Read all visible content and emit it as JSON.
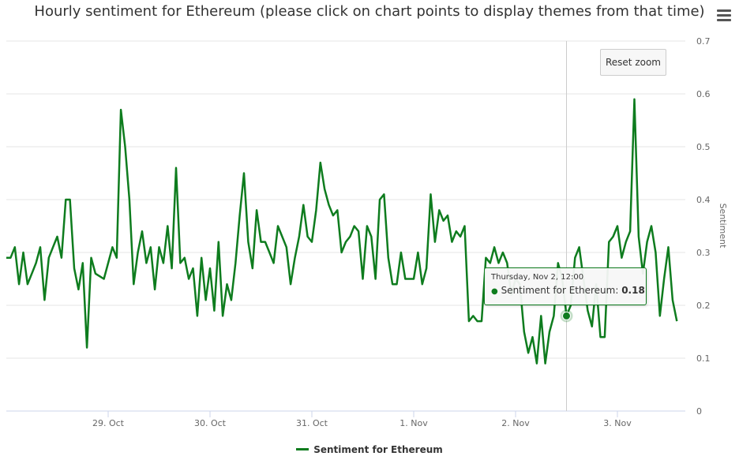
{
  "title": "Hourly sentiment for Ethereum (please click on chart points to display themes from that time)",
  "reset_zoom_label": "Reset zoom",
  "menu_icon": "hamburger-menu-icon",
  "tooltip": {
    "date": "Thursday, Nov 2, 12:00",
    "series": "Sentiment for Ethereum",
    "value": "0.18"
  },
  "colors": {
    "series": "#0e7c1e",
    "grid": "#e6e6e6",
    "axis_text": "#666666"
  },
  "chart_data": {
    "type": "line",
    "title": "Hourly sentiment for Ethereum (please click on chart points to display themes from that time)",
    "ylabel": "Sentiment",
    "xlabel": "",
    "ylim": [
      0,
      0.7
    ],
    "yticks": [
      "0",
      "0.1",
      "0.2",
      "0.3",
      "0.4",
      "0.5",
      "0.6",
      "0.7"
    ],
    "x_date_range": [
      "2017-10-28 00:00",
      "2017-11-03 16:00"
    ],
    "xtick_labels": [
      {
        "x": "2017-10-29 00:00",
        "label": "29. Oct"
      },
      {
        "x": "2017-10-30 00:00",
        "label": "30. Oct"
      },
      {
        "x": "2017-10-31 00:00",
        "label": "31. Oct"
      },
      {
        "x": "2017-11-01 00:00",
        "label": "1. Nov"
      },
      {
        "x": "2017-11-02 00:00",
        "label": "2. Nov"
      },
      {
        "x": "2017-11-03 00:00",
        "label": "3. Nov"
      }
    ],
    "grid": true,
    "legend": "bottom-center",
    "highlighted_point": {
      "x": "2017-11-02 12:00",
      "y": 0.18
    },
    "series": [
      {
        "name": "Sentiment for Ethereum",
        "color": "#0e7c1e",
        "points": [
          {
            "x": "2017-10-28 00:00",
            "y": 0.29
          },
          {
            "x": "2017-10-28 01:00",
            "y": 0.29
          },
          {
            "x": "2017-10-28 02:00",
            "y": 0.31
          },
          {
            "x": "2017-10-28 03:00",
            "y": 0.24
          },
          {
            "x": "2017-10-28 04:00",
            "y": 0.3
          },
          {
            "x": "2017-10-28 05:00",
            "y": 0.24
          },
          {
            "x": "2017-10-28 06:00",
            "y": 0.26
          },
          {
            "x": "2017-10-28 07:00",
            "y": 0.28
          },
          {
            "x": "2017-10-28 08:00",
            "y": 0.31
          },
          {
            "x": "2017-10-28 09:00",
            "y": 0.21
          },
          {
            "x": "2017-10-28 10:00",
            "y": 0.29
          },
          {
            "x": "2017-10-28 11:00",
            "y": 0.31
          },
          {
            "x": "2017-10-28 12:00",
            "y": 0.33
          },
          {
            "x": "2017-10-28 13:00",
            "y": 0.29
          },
          {
            "x": "2017-10-28 14:00",
            "y": 0.4
          },
          {
            "x": "2017-10-28 15:00",
            "y": 0.4
          },
          {
            "x": "2017-10-28 16:00",
            "y": 0.27
          },
          {
            "x": "2017-10-28 17:00",
            "y": 0.23
          },
          {
            "x": "2017-10-28 18:00",
            "y": 0.28
          },
          {
            "x": "2017-10-28 19:00",
            "y": 0.12
          },
          {
            "x": "2017-10-28 20:00",
            "y": 0.29
          },
          {
            "x": "2017-10-28 21:00",
            "y": 0.26
          },
          {
            "x": "2017-10-28 23:00",
            "y": 0.25
          },
          {
            "x": "2017-10-29 01:00",
            "y": 0.31
          },
          {
            "x": "2017-10-29 02:00",
            "y": 0.29
          },
          {
            "x": "2017-10-29 03:00",
            "y": 0.57
          },
          {
            "x": "2017-10-29 04:00",
            "y": 0.5
          },
          {
            "x": "2017-10-29 05:00",
            "y": 0.4
          },
          {
            "x": "2017-10-29 06:00",
            "y": 0.24
          },
          {
            "x": "2017-10-29 07:00",
            "y": 0.3
          },
          {
            "x": "2017-10-29 08:00",
            "y": 0.34
          },
          {
            "x": "2017-10-29 09:00",
            "y": 0.28
          },
          {
            "x": "2017-10-29 10:00",
            "y": 0.31
          },
          {
            "x": "2017-10-29 11:00",
            "y": 0.23
          },
          {
            "x": "2017-10-29 12:00",
            "y": 0.31
          },
          {
            "x": "2017-10-29 13:00",
            "y": 0.28
          },
          {
            "x": "2017-10-29 14:00",
            "y": 0.35
          },
          {
            "x": "2017-10-29 15:00",
            "y": 0.27
          },
          {
            "x": "2017-10-29 16:00",
            "y": 0.46
          },
          {
            "x": "2017-10-29 17:00",
            "y": 0.28
          },
          {
            "x": "2017-10-29 18:00",
            "y": 0.29
          },
          {
            "x": "2017-10-29 19:00",
            "y": 0.25
          },
          {
            "x": "2017-10-29 20:00",
            "y": 0.27
          },
          {
            "x": "2017-10-29 21:00",
            "y": 0.18
          },
          {
            "x": "2017-10-29 22:00",
            "y": 0.29
          },
          {
            "x": "2017-10-29 23:00",
            "y": 0.21
          },
          {
            "x": "2017-10-30 00:00",
            "y": 0.27
          },
          {
            "x": "2017-10-30 01:00",
            "y": 0.19
          },
          {
            "x": "2017-10-30 02:00",
            "y": 0.32
          },
          {
            "x": "2017-10-30 03:00",
            "y": 0.18
          },
          {
            "x": "2017-10-30 04:00",
            "y": 0.24
          },
          {
            "x": "2017-10-30 05:00",
            "y": 0.21
          },
          {
            "x": "2017-10-30 06:00",
            "y": 0.28
          },
          {
            "x": "2017-10-30 07:00",
            "y": 0.37
          },
          {
            "x": "2017-10-30 08:00",
            "y": 0.45
          },
          {
            "x": "2017-10-30 09:00",
            "y": 0.32
          },
          {
            "x": "2017-10-30 10:00",
            "y": 0.27
          },
          {
            "x": "2017-10-30 11:00",
            "y": 0.38
          },
          {
            "x": "2017-10-30 12:00",
            "y": 0.32
          },
          {
            "x": "2017-10-30 13:00",
            "y": 0.32
          },
          {
            "x": "2017-10-30 14:00",
            "y": 0.3
          },
          {
            "x": "2017-10-30 15:00",
            "y": 0.28
          },
          {
            "x": "2017-10-30 16:00",
            "y": 0.35
          },
          {
            "x": "2017-10-30 17:00",
            "y": 0.33
          },
          {
            "x": "2017-10-30 18:00",
            "y": 0.31
          },
          {
            "x": "2017-10-30 19:00",
            "y": 0.24
          },
          {
            "x": "2017-10-30 20:00",
            "y": 0.29
          },
          {
            "x": "2017-10-30 21:00",
            "y": 0.33
          },
          {
            "x": "2017-10-30 22:00",
            "y": 0.39
          },
          {
            "x": "2017-10-30 23:00",
            "y": 0.33
          },
          {
            "x": "2017-10-31 00:00",
            "y": 0.32
          },
          {
            "x": "2017-10-31 01:00",
            "y": 0.38
          },
          {
            "x": "2017-10-31 02:00",
            "y": 0.47
          },
          {
            "x": "2017-10-31 03:00",
            "y": 0.42
          },
          {
            "x": "2017-10-31 04:00",
            "y": 0.39
          },
          {
            "x": "2017-10-31 05:00",
            "y": 0.37
          },
          {
            "x": "2017-10-31 06:00",
            "y": 0.38
          },
          {
            "x": "2017-10-31 07:00",
            "y": 0.3
          },
          {
            "x": "2017-10-31 08:00",
            "y": 0.32
          },
          {
            "x": "2017-10-31 09:00",
            "y": 0.33
          },
          {
            "x": "2017-10-31 10:00",
            "y": 0.35
          },
          {
            "x": "2017-10-31 11:00",
            "y": 0.34
          },
          {
            "x": "2017-10-31 12:00",
            "y": 0.25
          },
          {
            "x": "2017-10-31 13:00",
            "y": 0.35
          },
          {
            "x": "2017-10-31 14:00",
            "y": 0.33
          },
          {
            "x": "2017-10-31 15:00",
            "y": 0.25
          },
          {
            "x": "2017-10-31 16:00",
            "y": 0.4
          },
          {
            "x": "2017-10-31 17:00",
            "y": 0.41
          },
          {
            "x": "2017-10-31 18:00",
            "y": 0.29
          },
          {
            "x": "2017-10-31 19:00",
            "y": 0.24
          },
          {
            "x": "2017-10-31 20:00",
            "y": 0.24
          },
          {
            "x": "2017-10-31 21:00",
            "y": 0.3
          },
          {
            "x": "2017-10-31 22:00",
            "y": 0.25
          },
          {
            "x": "2017-10-31 23:00",
            "y": 0.25
          },
          {
            "x": "2017-11-01 00:00",
            "y": 0.25
          },
          {
            "x": "2017-11-01 01:00",
            "y": 0.3
          },
          {
            "x": "2017-11-01 02:00",
            "y": 0.24
          },
          {
            "x": "2017-11-01 03:00",
            "y": 0.27
          },
          {
            "x": "2017-11-01 04:00",
            "y": 0.41
          },
          {
            "x": "2017-11-01 05:00",
            "y": 0.32
          },
          {
            "x": "2017-11-01 06:00",
            "y": 0.38
          },
          {
            "x": "2017-11-01 07:00",
            "y": 0.36
          },
          {
            "x": "2017-11-01 08:00",
            "y": 0.37
          },
          {
            "x": "2017-11-01 09:00",
            "y": 0.32
          },
          {
            "x": "2017-11-01 10:00",
            "y": 0.34
          },
          {
            "x": "2017-11-01 11:00",
            "y": 0.33
          },
          {
            "x": "2017-11-01 12:00",
            "y": 0.35
          },
          {
            "x": "2017-11-01 13:00",
            "y": 0.17
          },
          {
            "x": "2017-11-01 14:00",
            "y": 0.18
          },
          {
            "x": "2017-11-01 15:00",
            "y": 0.17
          },
          {
            "x": "2017-11-01 16:00",
            "y": 0.17
          },
          {
            "x": "2017-11-01 17:00",
            "y": 0.29
          },
          {
            "x": "2017-11-01 18:00",
            "y": 0.28
          },
          {
            "x": "2017-11-01 19:00",
            "y": 0.31
          },
          {
            "x": "2017-11-01 20:00",
            "y": 0.28
          },
          {
            "x": "2017-11-01 21:00",
            "y": 0.3
          },
          {
            "x": "2017-11-01 22:00",
            "y": 0.28
          },
          {
            "x": "2017-11-01 23:00",
            "y": 0.22
          },
          {
            "x": "2017-11-02 00:00",
            "y": 0.25
          },
          {
            "x": "2017-11-02 01:00",
            "y": 0.24
          },
          {
            "x": "2017-11-02 02:00",
            "y": 0.15
          },
          {
            "x": "2017-11-02 03:00",
            "y": 0.11
          },
          {
            "x": "2017-11-02 04:00",
            "y": 0.14
          },
          {
            "x": "2017-11-02 05:00",
            "y": 0.09
          },
          {
            "x": "2017-11-02 06:00",
            "y": 0.18
          },
          {
            "x": "2017-11-02 07:00",
            "y": 0.09
          },
          {
            "x": "2017-11-02 08:00",
            "y": 0.15
          },
          {
            "x": "2017-11-02 09:00",
            "y": 0.18
          },
          {
            "x": "2017-11-02 10:00",
            "y": 0.28
          },
          {
            "x": "2017-11-02 11:00",
            "y": 0.25
          },
          {
            "x": "2017-11-02 12:00",
            "y": 0.18
          },
          {
            "x": "2017-11-02 13:00",
            "y": 0.2
          },
          {
            "x": "2017-11-02 14:00",
            "y": 0.29
          },
          {
            "x": "2017-11-02 15:00",
            "y": 0.31
          },
          {
            "x": "2017-11-02 16:00",
            "y": 0.25
          },
          {
            "x": "2017-11-02 17:00",
            "y": 0.19
          },
          {
            "x": "2017-11-02 18:00",
            "y": 0.16
          },
          {
            "x": "2017-11-02 19:00",
            "y": 0.24
          },
          {
            "x": "2017-11-02 20:00",
            "y": 0.14
          },
          {
            "x": "2017-11-02 21:00",
            "y": 0.14
          },
          {
            "x": "2017-11-02 22:00",
            "y": 0.32
          },
          {
            "x": "2017-11-02 23:00",
            "y": 0.33
          },
          {
            "x": "2017-11-03 00:00",
            "y": 0.35
          },
          {
            "x": "2017-11-03 01:00",
            "y": 0.29
          },
          {
            "x": "2017-11-03 02:00",
            "y": 0.32
          },
          {
            "x": "2017-11-03 03:00",
            "y": 0.34
          },
          {
            "x": "2017-11-03 04:00",
            "y": 0.59
          },
          {
            "x": "2017-11-03 05:00",
            "y": 0.33
          },
          {
            "x": "2017-11-03 06:00",
            "y": 0.26
          },
          {
            "x": "2017-11-03 07:00",
            "y": 0.32
          },
          {
            "x": "2017-11-03 08:00",
            "y": 0.35
          },
          {
            "x": "2017-11-03 09:00",
            "y": 0.3
          },
          {
            "x": "2017-11-03 10:00",
            "y": 0.18
          },
          {
            "x": "2017-11-03 11:00",
            "y": 0.25
          },
          {
            "x": "2017-11-03 12:00",
            "y": 0.31
          },
          {
            "x": "2017-11-03 13:00",
            "y": 0.21
          },
          {
            "x": "2017-11-03 14:00",
            "y": 0.17
          }
        ]
      }
    ]
  }
}
